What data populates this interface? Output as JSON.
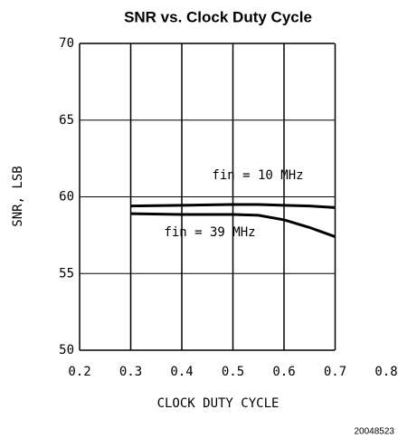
{
  "chart_data": {
    "type": "line",
    "title": "SNR vs. Clock Duty Cycle",
    "xlabel": "CLOCK DUTY CYCLE",
    "ylabel": "SNR, LSB",
    "footnote": "20048523",
    "x": [
      0.3,
      0.4,
      0.5,
      0.55,
      0.6,
      0.65,
      0.7
    ],
    "series": [
      {
        "name": "fin = 10 MHz",
        "color": "#000000",
        "values": [
          59.4,
          59.45,
          59.5,
          59.5,
          59.45,
          59.4,
          59.3
        ]
      },
      {
        "name": "fin = 39 MHz",
        "color": "#000000",
        "values": [
          58.9,
          58.85,
          58.85,
          58.8,
          58.5,
          58.0,
          57.4
        ]
      }
    ],
    "xlim": [
      0.2,
      0.8
    ],
    "xticks": [
      0.2,
      0.3,
      0.4,
      0.5,
      0.6,
      0.7,
      0.8
    ],
    "ylim": [
      50,
      70
    ],
    "yticks": [
      50,
      55,
      60,
      65,
      70
    ],
    "grid": true
  }
}
